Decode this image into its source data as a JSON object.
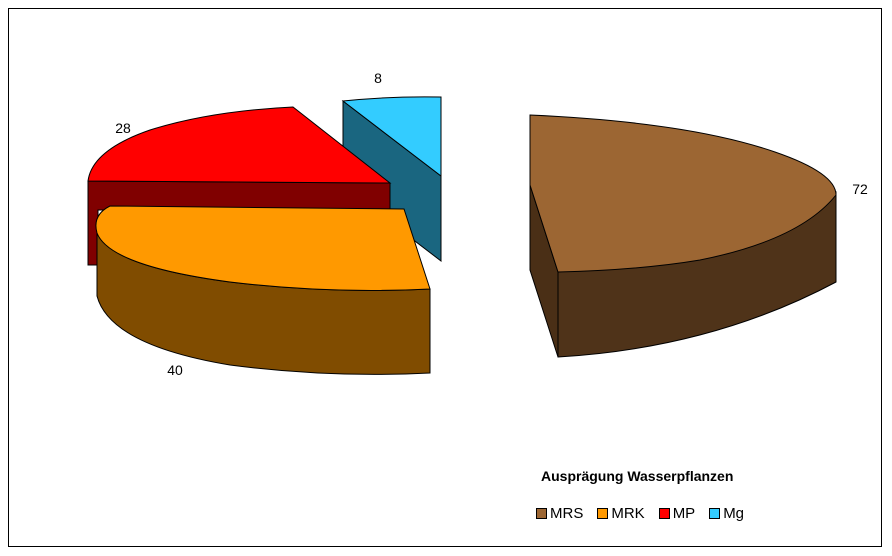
{
  "chart_data": {
    "type": "pie",
    "categories": [
      "MRS",
      "MRK",
      "MP",
      "Mg"
    ],
    "values": [
      72,
      40,
      28,
      8
    ],
    "legend_title": "Ausprägung Wasserpflanzen",
    "legend_position": "bottom-right",
    "colors": {
      "MRS": {
        "top": "#9C6633",
        "side": "#4F3319"
      },
      "MRK": {
        "top": "#FF9900",
        "side": "#804C00"
      },
      "MP": {
        "top": "#FF0000",
        "side": "#800000"
      },
      "Mg": {
        "top": "#33CCFF",
        "side": "#1A6680"
      }
    },
    "style": "3d-exploded"
  }
}
